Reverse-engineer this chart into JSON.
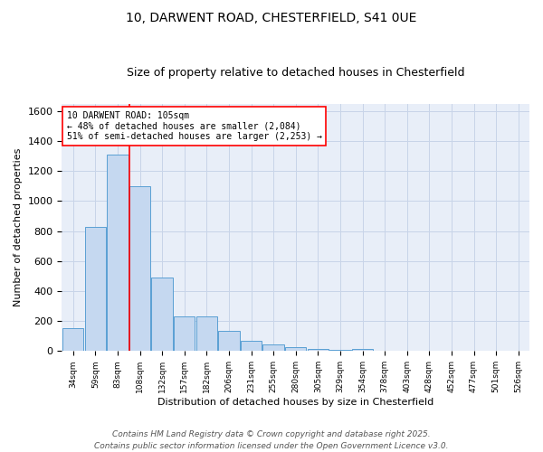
{
  "title": "10, DARWENT ROAD, CHESTERFIELD, S41 0UE",
  "subtitle": "Size of property relative to detached houses in Chesterfield",
  "xlabel": "Distribution of detached houses by size in Chesterfield",
  "ylabel": "Number of detached properties",
  "categories": [
    "34sqm",
    "59sqm",
    "83sqm",
    "108sqm",
    "132sqm",
    "157sqm",
    "182sqm",
    "206sqm",
    "231sqm",
    "255sqm",
    "280sqm",
    "305sqm",
    "329sqm",
    "354sqm",
    "378sqm",
    "403sqm",
    "428sqm",
    "452sqm",
    "477sqm",
    "501sqm",
    "526sqm"
  ],
  "values": [
    150,
    830,
    1310,
    1100,
    490,
    230,
    230,
    135,
    70,
    42,
    25,
    15,
    8,
    14,
    4,
    2,
    5,
    1,
    1,
    1,
    0
  ],
  "bar_color": "#c5d8f0",
  "bar_edge_color": "#5a9fd4",
  "red_line_index": 3,
  "annotation_line1": "10 DARWENT ROAD: 105sqm",
  "annotation_line2": "← 48% of detached houses are smaller (2,084)",
  "annotation_line3": "51% of semi-detached houses are larger (2,253) →",
  "annotation_box_color": "white",
  "annotation_box_edge_color": "red",
  "ylim": [
    0,
    1650
  ],
  "yticks": [
    0,
    200,
    400,
    600,
    800,
    1000,
    1200,
    1400,
    1600
  ],
  "grid_color": "#c8d4e8",
  "background_color": "#e8eef8",
  "footer_line1": "Contains HM Land Registry data © Crown copyright and database right 2025.",
  "footer_line2": "Contains public sector information licensed under the Open Government Licence v3.0.",
  "title_fontsize": 10,
  "subtitle_fontsize": 9,
  "annotation_fontsize": 7,
  "footer_fontsize": 6.5,
  "xlabel_fontsize": 8,
  "ylabel_fontsize": 8
}
